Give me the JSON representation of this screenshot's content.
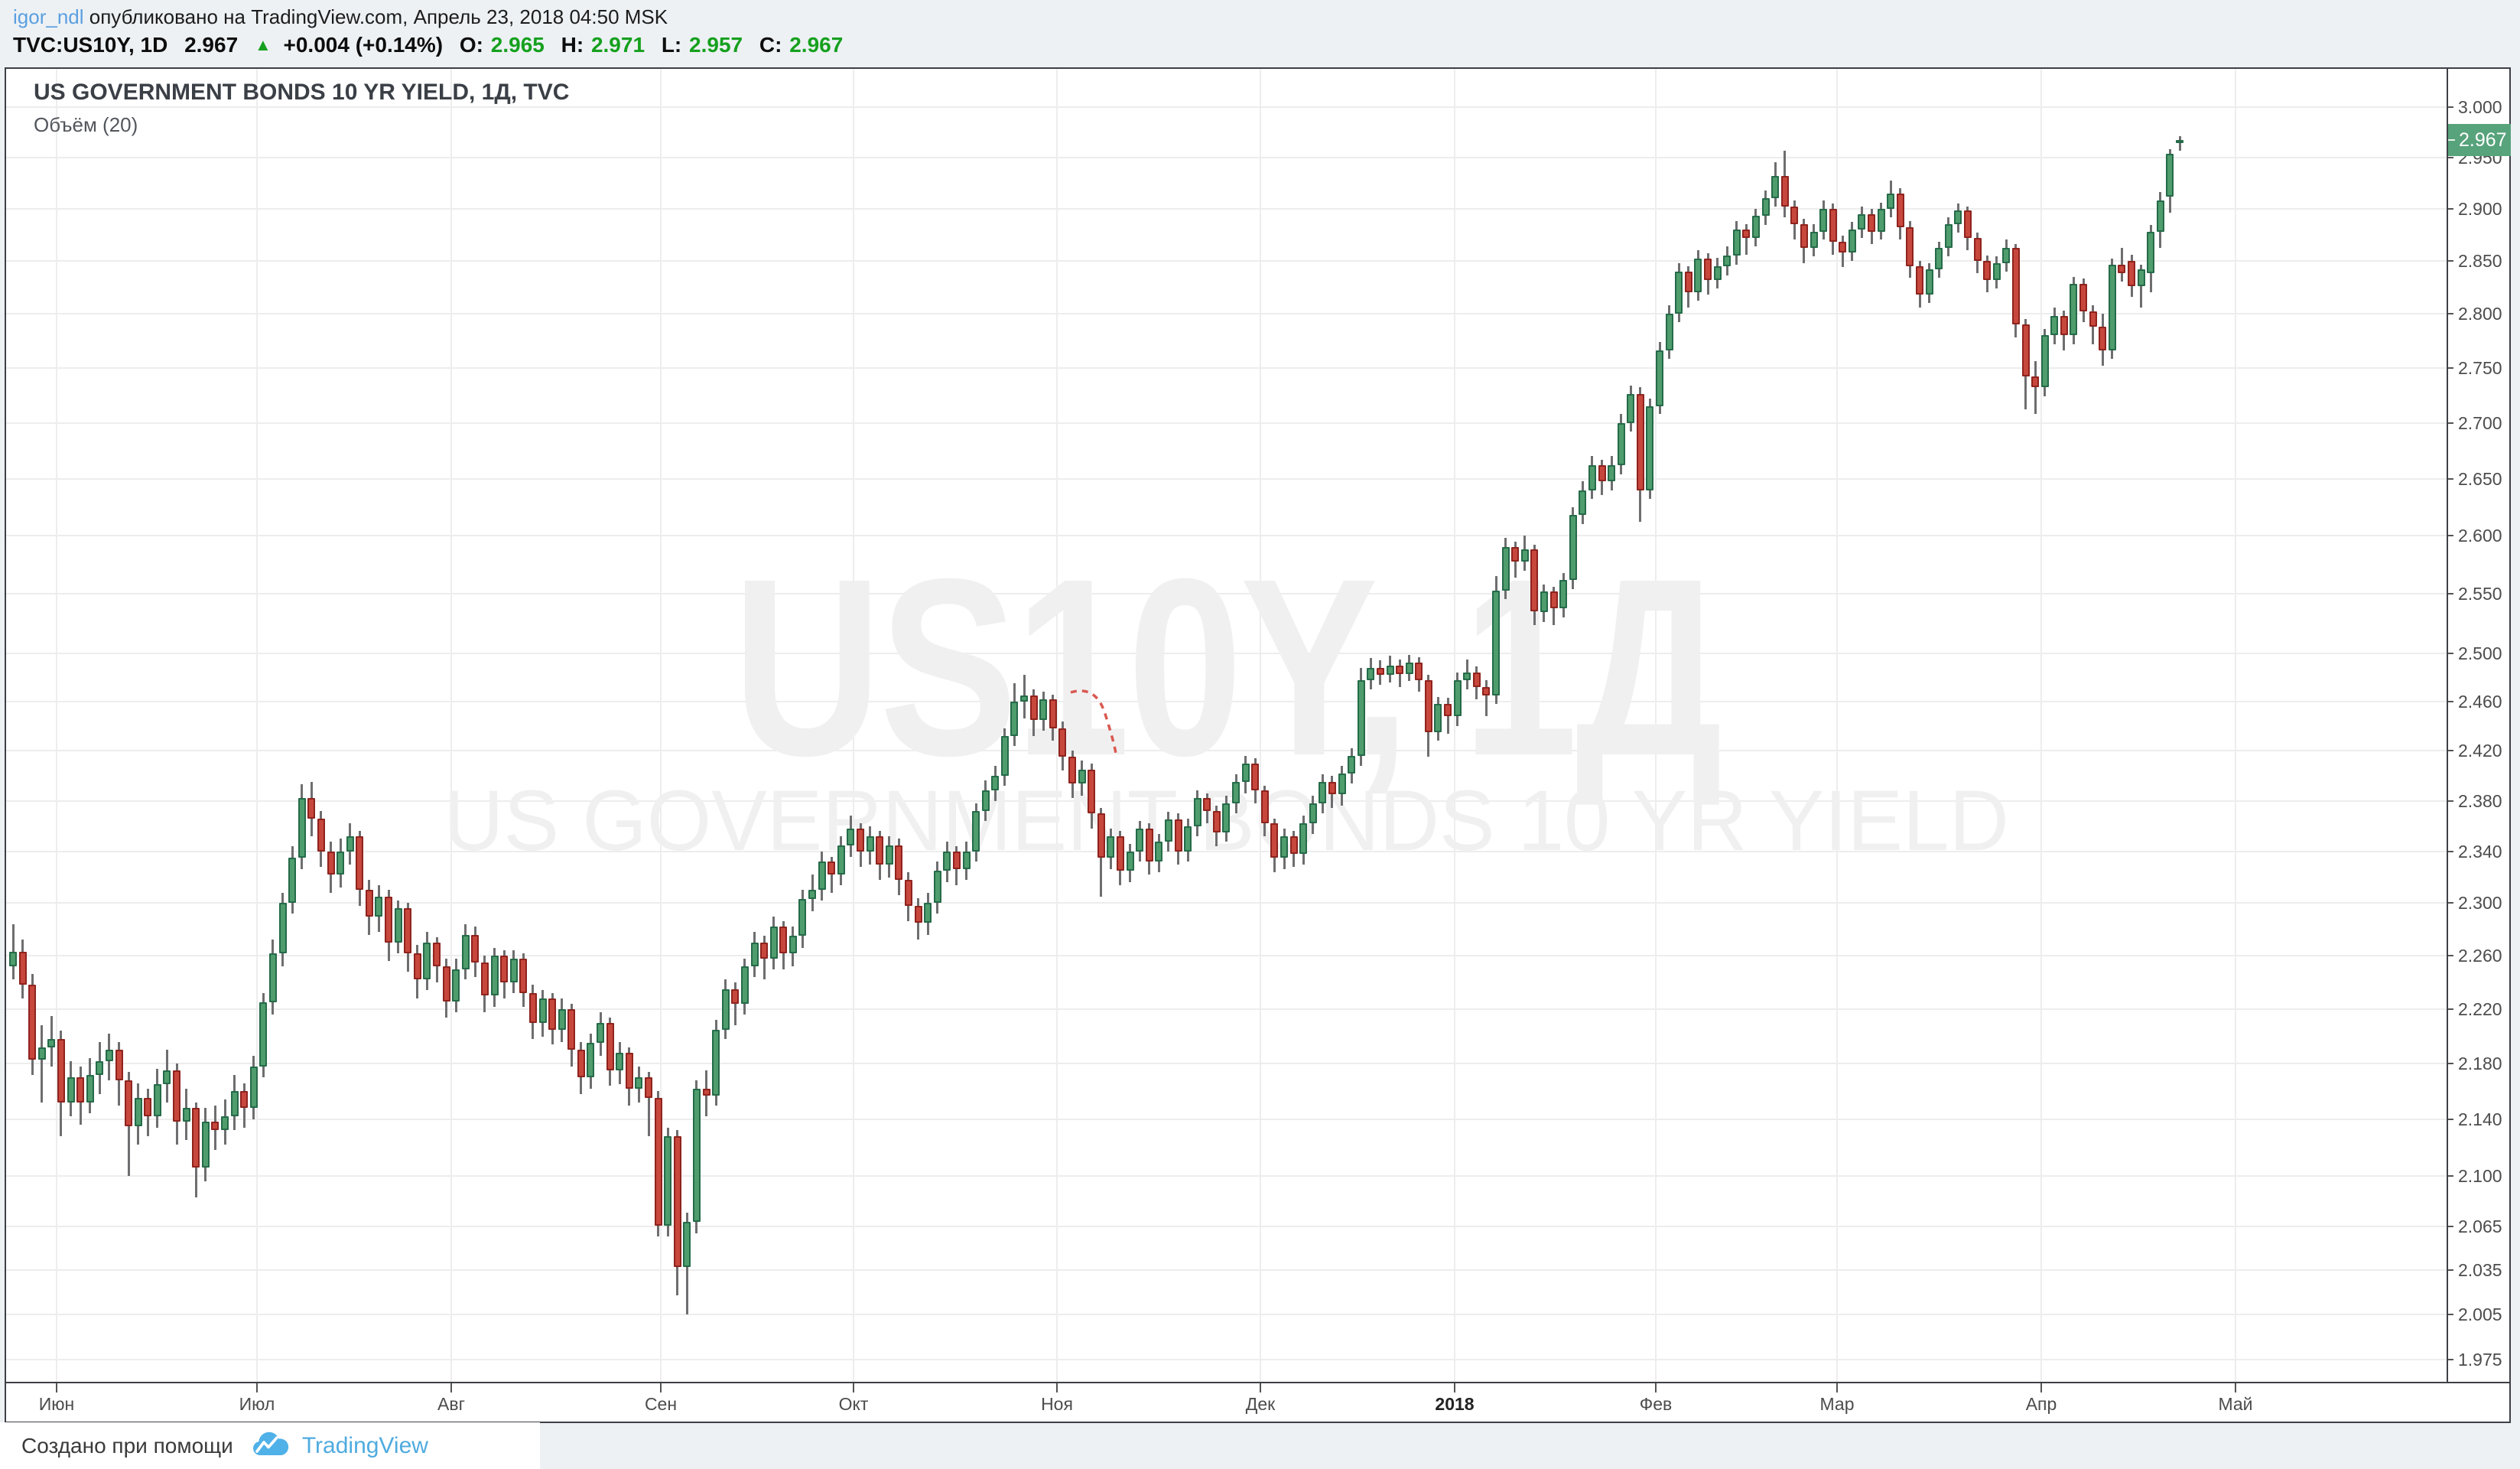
{
  "published_bar": {
    "username": "igor_ndl",
    "text": "опубликовано на TradingView.com, Апрель 23, 2018 04:50 MSK"
  },
  "quote_bar": {
    "symbol": "TVC:US10Y, 1D",
    "price": "2.967",
    "direction_icon": "up-triangle",
    "change": "+0.004 (+0.14%)",
    "o_label": "O:",
    "o_value": "2.965",
    "h_label": "H:",
    "h_value": "2.971",
    "l_label": "L:",
    "l_value": "2.957",
    "c_label": "C:",
    "c_value": "2.967"
  },
  "chart": {
    "title_line": "US GOVERNMENT BONDS 10 YR YIELD, 1Д, TVC",
    "indicator_label": "Объём (20)",
    "watermark_line1": "US10Y, 1Д",
    "watermark_line2": "US GOVERNMENT BONDS 10 YR YIELD",
    "price_label": "2.967"
  },
  "footer": {
    "text": "Создано при помощи",
    "brand": "TradingView",
    "logo": "cloud-chart-icon"
  },
  "colors": {
    "page_bg": "#edf1f4",
    "chart_bg": "#ffffff",
    "frame": "#3d4046",
    "grid": "#ededed",
    "axis_text": "#4c4c4c",
    "up_fill": "#4f9c6d",
    "up_border": "#256b49",
    "down_fill": "#c7473d",
    "down_border": "#8f231d",
    "wick": "#6e6e70",
    "badge_bg": "#57a37b",
    "value_green": "#16a01e",
    "username_blue": "#5b9fe0",
    "brand_blue": "#4fabdf",
    "annotation_red": "#d95950"
  },
  "chart_data": {
    "type": "candlestick",
    "symbol": "US10Y",
    "timeframe": "1Д",
    "title": "US GOVERNMENT BONDS 10 YR YIELD",
    "scale": "logarithmic",
    "y_range": [
      1.975,
      3.0
    ],
    "last_price": 2.967,
    "last_ohlc": {
      "open": 2.965,
      "high": 2.971,
      "low": 2.957,
      "close": 2.967
    },
    "y_axis_ticks": [
      "3.000",
      "2.950",
      "2.900",
      "2.850",
      "2.800",
      "2.750",
      "2.700",
      "2.650",
      "2.600",
      "2.550",
      "2.500",
      "2.460",
      "2.420",
      "2.380",
      "2.340",
      "2.300",
      "2.260",
      "2.220",
      "2.180",
      "2.140",
      "2.100",
      "2.065",
      "2.035",
      "2.005",
      "1.975"
    ],
    "x_axis": {
      "ticks": [
        {
          "label": "Июн",
          "x": 74
        },
        {
          "label": "Июл",
          "x": 336
        },
        {
          "label": "Авг",
          "x": 590
        },
        {
          "label": "Сен",
          "x": 864
        },
        {
          "label": "Окт",
          "x": 1116
        },
        {
          "label": "Ноя",
          "x": 1382
        },
        {
          "label": "Дек",
          "x": 1648
        },
        {
          "label": "2018",
          "x": 1902,
          "bold": true
        },
        {
          "label": "Фев",
          "x": 2165
        },
        {
          "label": "Мар",
          "x": 2402
        },
        {
          "label": "Апр",
          "x": 2669
        },
        {
          "label": "Май",
          "x": 2923
        }
      ]
    },
    "candles": [
      [
        2.252,
        2.284,
        2.242,
        2.263
      ],
      [
        2.263,
        2.272,
        2.228,
        2.238
      ],
      [
        2.238,
        2.246,
        2.172,
        2.183
      ],
      [
        2.183,
        2.208,
        2.152,
        2.192
      ],
      [
        2.192,
        2.215,
        2.178,
        2.198
      ],
      [
        2.198,
        2.204,
        2.128,
        2.152
      ],
      [
        2.152,
        2.182,
        2.142,
        2.17
      ],
      [
        2.17,
        2.178,
        2.136,
        2.152
      ],
      [
        2.152,
        2.184,
        2.144,
        2.172
      ],
      [
        2.172,
        2.196,
        2.158,
        2.182
      ],
      [
        2.182,
        2.202,
        2.168,
        2.19
      ],
      [
        2.19,
        2.196,
        2.15,
        2.168
      ],
      [
        2.168,
        2.174,
        2.1,
        2.135
      ],
      [
        2.135,
        2.166,
        2.122,
        2.155
      ],
      [
        2.155,
        2.162,
        2.128,
        2.142
      ],
      [
        2.142,
        2.176,
        2.134,
        2.165
      ],
      [
        2.165,
        2.19,
        2.152,
        2.175
      ],
      [
        2.175,
        2.18,
        2.122,
        2.138
      ],
      [
        2.138,
        2.162,
        2.125,
        2.148
      ],
      [
        2.148,
        2.152,
        2.085,
        2.106
      ],
      [
        2.106,
        2.148,
        2.096,
        2.138
      ],
      [
        2.138,
        2.15,
        2.118,
        2.132
      ],
      [
        2.132,
        2.154,
        2.122,
        2.142
      ],
      [
        2.142,
        2.172,
        2.132,
        2.16
      ],
      [
        2.16,
        2.166,
        2.134,
        2.148
      ],
      [
        2.148,
        2.186,
        2.14,
        2.178
      ],
      [
        2.178,
        2.232,
        2.17,
        2.225
      ],
      [
        2.225,
        2.272,
        2.216,
        2.262
      ],
      [
        2.262,
        2.308,
        2.252,
        2.3
      ],
      [
        2.3,
        2.344,
        2.292,
        2.335
      ],
      [
        2.335,
        2.393,
        2.326,
        2.382
      ],
      [
        2.382,
        2.395,
        2.352,
        2.366
      ],
      [
        2.366,
        2.372,
        2.328,
        2.34
      ],
      [
        2.34,
        2.348,
        2.308,
        2.322
      ],
      [
        2.322,
        2.35,
        2.312,
        2.34
      ],
      [
        2.34,
        2.362,
        2.33,
        2.352
      ],
      [
        2.352,
        2.356,
        2.298,
        2.31
      ],
      [
        2.31,
        2.318,
        2.276,
        2.29
      ],
      [
        2.29,
        2.314,
        2.278,
        2.305
      ],
      [
        2.305,
        2.31,
        2.256,
        2.27
      ],
      [
        2.27,
        2.302,
        2.262,
        2.296
      ],
      [
        2.296,
        2.3,
        2.248,
        2.262
      ],
      [
        2.262,
        2.268,
        2.228,
        2.242
      ],
      [
        2.242,
        2.278,
        2.234,
        2.27
      ],
      [
        2.27,
        2.274,
        2.24,
        2.252
      ],
      [
        2.252,
        2.258,
        2.214,
        2.226
      ],
      [
        2.226,
        2.258,
        2.218,
        2.25
      ],
      [
        2.25,
        2.284,
        2.242,
        2.276
      ],
      [
        2.276,
        2.282,
        2.244,
        2.255
      ],
      [
        2.255,
        2.26,
        2.218,
        2.23
      ],
      [
        2.23,
        2.266,
        2.222,
        2.26
      ],
      [
        2.26,
        2.264,
        2.228,
        2.24
      ],
      [
        2.24,
        2.264,
        2.232,
        2.258
      ],
      [
        2.258,
        2.262,
        2.222,
        2.232
      ],
      [
        2.232,
        2.238,
        2.198,
        2.21
      ],
      [
        2.21,
        2.234,
        2.2,
        2.228
      ],
      [
        2.228,
        2.232,
        2.194,
        2.205
      ],
      [
        2.205,
        2.228,
        2.196,
        2.22
      ],
      [
        2.22,
        2.224,
        2.178,
        2.19
      ],
      [
        2.19,
        2.196,
        2.158,
        2.17
      ],
      [
        2.17,
        2.202,
        2.162,
        2.195
      ],
      [
        2.195,
        2.218,
        2.186,
        2.21
      ],
      [
        2.21,
        2.214,
        2.164,
        2.175
      ],
      [
        2.175,
        2.196,
        2.165,
        2.188
      ],
      [
        2.188,
        2.192,
        2.15,
        2.162
      ],
      [
        2.162,
        2.178,
        2.152,
        2.17
      ],
      [
        2.17,
        2.174,
        2.128,
        2.155
      ],
      [
        2.155,
        2.16,
        2.058,
        2.065
      ],
      [
        2.065,
        2.134,
        2.058,
        2.128
      ],
      [
        2.128,
        2.132,
        2.018,
        2.037
      ],
      [
        2.037,
        2.074,
        2.005,
        2.068
      ],
      [
        2.068,
        2.168,
        2.06,
        2.162
      ],
      [
        2.162,
        2.175,
        2.142,
        2.157
      ],
      [
        2.157,
        2.212,
        2.15,
        2.205
      ],
      [
        2.205,
        2.242,
        2.198,
        2.235
      ],
      [
        2.235,
        2.24,
        2.208,
        2.224
      ],
      [
        2.224,
        2.258,
        2.216,
        2.252
      ],
      [
        2.252,
        2.278,
        2.244,
        2.27
      ],
      [
        2.27,
        2.275,
        2.242,
        2.258
      ],
      [
        2.258,
        2.29,
        2.25,
        2.282
      ],
      [
        2.282,
        2.286,
        2.25,
        2.262
      ],
      [
        2.262,
        2.282,
        2.252,
        2.275
      ],
      [
        2.275,
        2.31,
        2.266,
        2.303
      ],
      [
        2.303,
        2.322,
        2.294,
        2.31
      ],
      [
        2.31,
        2.34,
        2.302,
        2.332
      ],
      [
        2.332,
        2.336,
        2.308,
        2.322
      ],
      [
        2.322,
        2.352,
        2.314,
        2.345
      ],
      [
        2.345,
        2.368,
        2.336,
        2.358
      ],
      [
        2.358,
        2.362,
        2.328,
        2.34
      ],
      [
        2.34,
        2.36,
        2.33,
        2.352
      ],
      [
        2.352,
        2.356,
        2.318,
        2.33
      ],
      [
        2.33,
        2.352,
        2.32,
        2.345
      ],
      [
        2.345,
        2.35,
        2.306,
        2.318
      ],
      [
        2.318,
        2.324,
        2.286,
        2.298
      ],
      [
        2.298,
        2.304,
        2.272,
        2.285
      ],
      [
        2.285,
        2.308,
        2.276,
        2.3
      ],
      [
        2.3,
        2.332,
        2.292,
        2.325
      ],
      [
        2.325,
        2.348,
        2.316,
        2.34
      ],
      [
        2.34,
        2.344,
        2.314,
        2.326
      ],
      [
        2.326,
        2.348,
        2.318,
        2.34
      ],
      [
        2.34,
        2.378,
        2.332,
        2.372
      ],
      [
        2.372,
        2.396,
        2.364,
        2.388
      ],
      [
        2.388,
        2.408,
        2.38,
        2.4
      ],
      [
        2.4,
        2.438,
        2.392,
        2.432
      ],
      [
        2.432,
        2.475,
        2.424,
        2.46
      ],
      [
        2.46,
        2.482,
        2.446,
        2.465
      ],
      [
        2.465,
        2.47,
        2.432,
        2.445
      ],
      [
        2.445,
        2.468,
        2.436,
        2.462
      ],
      [
        2.462,
        2.466,
        2.428,
        2.438
      ],
      [
        2.438,
        2.444,
        2.404,
        2.415
      ],
      [
        2.415,
        2.42,
        2.382,
        2.394
      ],
      [
        2.394,
        2.412,
        2.384,
        2.405
      ],
      [
        2.405,
        2.41,
        2.358,
        2.37
      ],
      [
        2.37,
        2.374,
        2.305,
        2.335
      ],
      [
        2.335,
        2.358,
        2.326,
        2.352
      ],
      [
        2.352,
        2.356,
        2.314,
        2.325
      ],
      [
        2.325,
        2.346,
        2.316,
        2.34
      ],
      [
        2.34,
        2.364,
        2.332,
        2.358
      ],
      [
        2.358,
        2.362,
        2.322,
        2.332
      ],
      [
        2.332,
        2.354,
        2.324,
        2.348
      ],
      [
        2.348,
        2.371,
        2.34,
        2.365
      ],
      [
        2.365,
        2.37,
        2.33,
        2.34
      ],
      [
        2.34,
        2.366,
        2.332,
        2.36
      ],
      [
        2.36,
        2.388,
        2.352,
        2.382
      ],
      [
        2.382,
        2.386,
        2.362,
        2.372
      ],
      [
        2.372,
        2.376,
        2.344,
        2.355
      ],
      [
        2.355,
        2.384,
        2.348,
        2.378
      ],
      [
        2.378,
        2.401,
        2.37,
        2.395
      ],
      [
        2.395,
        2.416,
        2.386,
        2.41
      ],
      [
        2.41,
        2.414,
        2.378,
        2.388
      ],
      [
        2.388,
        2.392,
        2.352,
        2.362
      ],
      [
        2.362,
        2.366,
        2.324,
        2.335
      ],
      [
        2.335,
        2.358,
        2.326,
        2.352
      ],
      [
        2.352,
        2.356,
        2.328,
        2.338
      ],
      [
        2.338,
        2.368,
        2.33,
        2.362
      ],
      [
        2.362,
        2.384,
        2.354,
        2.378
      ],
      [
        2.378,
        2.401,
        2.37,
        2.395
      ],
      [
        2.395,
        2.4,
        2.374,
        2.385
      ],
      [
        2.385,
        2.408,
        2.376,
        2.402
      ],
      [
        2.402,
        2.422,
        2.394,
        2.416
      ],
      [
        2.416,
        2.488,
        2.408,
        2.478
      ],
      [
        2.478,
        2.496,
        2.47,
        2.488
      ],
      [
        2.488,
        2.494,
        2.474,
        2.482
      ],
      [
        2.482,
        2.498,
        2.476,
        2.49
      ],
      [
        2.49,
        2.495,
        2.472,
        2.483
      ],
      [
        2.483,
        2.499,
        2.477,
        2.492
      ],
      [
        2.492,
        2.497,
        2.468,
        2.478
      ],
      [
        2.478,
        2.482,
        2.415,
        2.435
      ],
      [
        2.435,
        2.464,
        2.428,
        2.458
      ],
      [
        2.458,
        2.463,
        2.434,
        2.448
      ],
      [
        2.448,
        2.484,
        2.44,
        2.478
      ],
      [
        2.478,
        2.495,
        2.47,
        2.484
      ],
      [
        2.484,
        2.489,
        2.462,
        2.472
      ],
      [
        2.472,
        2.478,
        2.448,
        2.465
      ],
      [
        2.465,
        2.565,
        2.458,
        2.553
      ],
      [
        2.553,
        2.598,
        2.546,
        2.59
      ],
      [
        2.59,
        2.595,
        2.564,
        2.578
      ],
      [
        2.578,
        2.6,
        2.57,
        2.588
      ],
      [
        2.588,
        2.592,
        2.524,
        2.535
      ],
      [
        2.535,
        2.558,
        2.526,
        2.552
      ],
      [
        2.552,
        2.556,
        2.524,
        2.538
      ],
      [
        2.538,
        2.568,
        2.53,
        2.562
      ],
      [
        2.562,
        2.625,
        2.554,
        2.618
      ],
      [
        2.618,
        2.648,
        2.61,
        2.64
      ],
      [
        2.64,
        2.67,
        2.632,
        2.662
      ],
      [
        2.662,
        2.667,
        2.636,
        2.648
      ],
      [
        2.648,
        2.67,
        2.64,
        2.662
      ],
      [
        2.662,
        2.708,
        2.654,
        2.7
      ],
      [
        2.7,
        2.734,
        2.692,
        2.726
      ],
      [
        2.726,
        2.732,
        2.612,
        2.64
      ],
      [
        2.64,
        2.722,
        2.632,
        2.715
      ],
      [
        2.715,
        2.774,
        2.708,
        2.766
      ],
      [
        2.766,
        2.808,
        2.758,
        2.8
      ],
      [
        2.8,
        2.848,
        2.792,
        2.84
      ],
      [
        2.84,
        2.845,
        2.806,
        2.82
      ],
      [
        2.82,
        2.86,
        2.812,
        2.852
      ],
      [
        2.852,
        2.857,
        2.818,
        2.832
      ],
      [
        2.832,
        2.853,
        2.824,
        2.845
      ],
      [
        2.845,
        2.864,
        2.836,
        2.855
      ],
      [
        2.855,
        2.888,
        2.846,
        2.88
      ],
      [
        2.88,
        2.885,
        2.856,
        2.872
      ],
      [
        2.872,
        2.9,
        2.864,
        2.893
      ],
      [
        2.893,
        2.918,
        2.884,
        2.91
      ],
      [
        2.91,
        2.945,
        2.902,
        2.932
      ],
      [
        2.932,
        2.957,
        2.892,
        2.902
      ],
      [
        2.902,
        2.908,
        2.87,
        2.885
      ],
      [
        2.885,
        2.89,
        2.848,
        2.862
      ],
      [
        2.862,
        2.885,
        2.854,
        2.878
      ],
      [
        2.878,
        2.908,
        2.87,
        2.9
      ],
      [
        2.9,
        2.905,
        2.856,
        2.868
      ],
      [
        2.868,
        2.874,
        2.844,
        2.858
      ],
      [
        2.858,
        2.887,
        2.85,
        2.88
      ],
      [
        2.88,
        2.902,
        2.872,
        2.895
      ],
      [
        2.895,
        2.9,
        2.866,
        2.878
      ],
      [
        2.878,
        2.906,
        2.87,
        2.9
      ],
      [
        2.9,
        2.927,
        2.892,
        2.915
      ],
      [
        2.915,
        2.92,
        2.87,
        2.882
      ],
      [
        2.882,
        2.888,
        2.834,
        2.845
      ],
      [
        2.845,
        2.85,
        2.806,
        2.818
      ],
      [
        2.818,
        2.848,
        2.81,
        2.842
      ],
      [
        2.842,
        2.868,
        2.834,
        2.862
      ],
      [
        2.862,
        2.892,
        2.854,
        2.885
      ],
      [
        2.885,
        2.905,
        2.877,
        2.898
      ],
      [
        2.898,
        2.902,
        2.86,
        2.872
      ],
      [
        2.872,
        2.877,
        2.838,
        2.85
      ],
      [
        2.85,
        2.855,
        2.82,
        2.832
      ],
      [
        2.832,
        2.854,
        2.824,
        2.848
      ],
      [
        2.848,
        2.87,
        2.84,
        2.862
      ],
      [
        2.862,
        2.866,
        2.778,
        2.79
      ],
      [
        2.79,
        2.795,
        2.712,
        2.742
      ],
      [
        2.742,
        2.756,
        2.708,
        2.732
      ],
      [
        2.732,
        2.786,
        2.724,
        2.78
      ],
      [
        2.78,
        2.806,
        2.772,
        2.798
      ],
      [
        2.798,
        2.803,
        2.766,
        2.78
      ],
      [
        2.78,
        2.835,
        2.772,
        2.828
      ],
      [
        2.828,
        2.833,
        2.792,
        2.802
      ],
      [
        2.802,
        2.808,
        2.772,
        2.788
      ],
      [
        2.788,
        2.8,
        2.752,
        2.766
      ],
      [
        2.766,
        2.852,
        2.758,
        2.846
      ],
      [
        2.846,
        2.862,
        2.83,
        2.838
      ],
      [
        2.85,
        2.856,
        2.816,
        2.826
      ],
      [
        2.826,
        2.846,
        2.806,
        2.842
      ],
      [
        2.838,
        2.884,
        2.82,
        2.878
      ],
      [
        2.878,
        2.916,
        2.862,
        2.908
      ],
      [
        2.912,
        2.958,
        2.896,
        2.954
      ],
      [
        2.965,
        2.971,
        2.957,
        2.967
      ]
    ]
  }
}
